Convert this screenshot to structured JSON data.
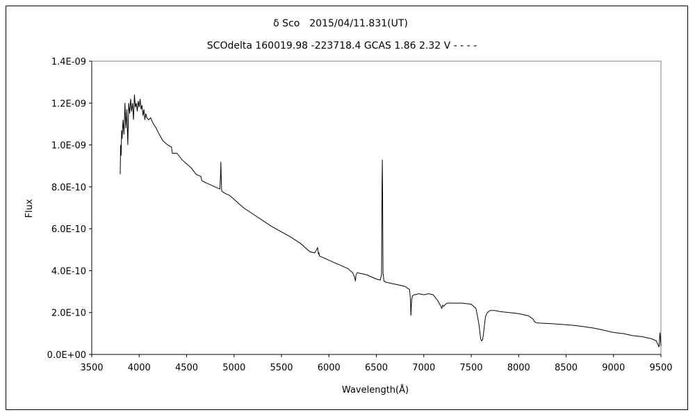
{
  "chart_data": {
    "type": "line",
    "title": "δ Sco　2015/04/11.831(UT)",
    "subtitle": "SCOdelta 160019.98 -223718.4 GCAS 1.86 2.32 V - - - -",
    "xlabel": "Wavelength(Å)",
    "ylabel": "Flux",
    "xlim": [
      3500,
      9500
    ],
    "ylim": [
      0,
      1.4e-09
    ],
    "x_ticks": [
      "3500",
      "4000",
      "4500",
      "5000",
      "5500",
      "6000",
      "6500",
      "7000",
      "7500",
      "8000",
      "8500",
      "9000",
      "9500"
    ],
    "y_ticks": [
      "0.0E+00",
      "2.0E-10",
      "4.0E-10",
      "6.0E-10",
      "8.0E-10",
      "1.0E-09",
      "1.2E-09",
      "1.4E-09"
    ],
    "grid": false,
    "series_color": "#000000",
    "series": [
      {
        "x": [
          3800,
          3805,
          3810,
          3815,
          3820,
          3830,
          3840,
          3850,
          3860,
          3870,
          3880,
          3890,
          3900,
          3910,
          3920,
          3930,
          3940,
          3950,
          3960,
          3970,
          3980,
          3990,
          4000,
          4010,
          4020,
          4030,
          4040,
          4050,
          4060,
          4070,
          4080,
          4100,
          4120,
          4150,
          4180,
          4200,
          4250,
          4300,
          4340,
          4350,
          4400,
          4450,
          4500,
          4550,
          4600,
          4650,
          4660,
          4700,
          4750,
          4800,
          4850,
          4858,
          4861,
          4864,
          4870,
          4900,
          4950,
          5000,
          5050,
          5100,
          5200,
          5300,
          5400,
          5500,
          5600,
          5700,
          5800,
          5850,
          5870,
          5880,
          5890,
          5895,
          5900,
          5950,
          6000,
          6050,
          6100,
          6150,
          6200,
          6250,
          6270,
          6280,
          6285,
          6300,
          6350,
          6400,
          6450,
          6500,
          6540,
          6555,
          6560,
          6563,
          6566,
          6570,
          6580,
          6600,
          6700,
          6800,
          6850,
          6860,
          6865,
          6868,
          6872,
          6880,
          6900,
          6950,
          7000,
          7050,
          7100,
          7150,
          7180,
          7190,
          7200,
          7210,
          7230,
          7250,
          7300,
          7400,
          7500,
          7550,
          7580,
          7600,
          7610,
          7620,
          7630,
          7640,
          7650,
          7670,
          7700,
          7750,
          7800,
          7900,
          8000,
          8100,
          8150,
          8170,
          8200,
          8300,
          8400,
          8500,
          8600,
          8700,
          8800,
          8900,
          9000,
          9100,
          9200,
          9300,
          9400,
          9450,
          9480,
          9490,
          9500
        ],
        "y": [
          8.6e-10,
          1e-09,
          9.5e-10,
          1.07e-09,
          1.03e-09,
          1.12e-09,
          1.05e-09,
          1.2e-09,
          1.08e-09,
          1.17e-09,
          1e-09,
          1.2e-09,
          1.15e-09,
          1.22e-09,
          1.16e-09,
          1.2e-09,
          1.12e-09,
          1.24e-09,
          1.18e-09,
          1.2e-09,
          1.16e-09,
          1.21e-09,
          1.18e-09,
          1.22e-09,
          1.17e-09,
          1.19e-09,
          1.14e-09,
          1.17e-09,
          1.12e-09,
          1.15e-09,
          1.13e-09,
          1.12e-09,
          1.13e-09,
          1.1e-09,
          1.08e-09,
          1.06e-09,
          1.02e-09,
          1e-09,
          9.9e-10,
          9.6e-10,
          9.6e-10,
          9.3e-10,
          9.1e-10,
          8.9e-10,
          8.6e-10,
          8.5e-10,
          8.3e-10,
          8.2e-10,
          8.1e-10,
          8e-10,
          7.9e-10,
          8.6e-10,
          9.2e-10,
          8.5e-10,
          7.8e-10,
          7.7e-10,
          7.6e-10,
          7.4e-10,
          7.2e-10,
          7e-10,
          6.7e-10,
          6.4e-10,
          6.1e-10,
          5.85e-10,
          5.6e-10,
          5.3e-10,
          4.9e-10,
          4.85e-10,
          5e-10,
          5.1e-10,
          4.8e-10,
          4.85e-10,
          4.7e-10,
          4.6e-10,
          4.5e-10,
          4.4e-10,
          4.3e-10,
          4.2e-10,
          4.1e-10,
          3.9e-10,
          3.7e-10,
          3.5e-10,
          3.8e-10,
          3.9e-10,
          3.85e-10,
          3.8e-10,
          3.7e-10,
          3.6e-10,
          3.55e-10,
          3.8e-10,
          8e-10,
          9.3e-10,
          7.8e-10,
          3.9e-10,
          3.5e-10,
          3.45e-10,
          3.35e-10,
          3.25e-10,
          3.1e-10,
          2.6e-10,
          1.85e-10,
          2.2e-10,
          2.6e-10,
          2.8e-10,
          2.85e-10,
          2.9e-10,
          2.85e-10,
          2.9e-10,
          2.85e-10,
          2.55e-10,
          2.3e-10,
          2.2e-10,
          2.35e-10,
          2.3e-10,
          2.4e-10,
          2.45e-10,
          2.45e-10,
          2.45e-10,
          2.4e-10,
          2.2e-10,
          1.5e-10,
          7.5e-11,
          6.5e-11,
          7e-11,
          1e-10,
          1.4e-10,
          1.8e-10,
          2e-10,
          2.1e-10,
          2.1e-10,
          2.05e-10,
          2e-10,
          1.95e-10,
          1.85e-10,
          1.7e-10,
          1.55e-10,
          1.5e-10,
          1.48e-10,
          1.45e-10,
          1.42e-10,
          1.38e-10,
          1.32e-10,
          1.25e-10,
          1.15e-10,
          1.05e-10,
          1e-10,
          9e-11,
          8.5e-11,
          7.5e-11,
          6.5e-11,
          3.5e-11,
          1.05e-10,
          4e-11
        ]
      }
    ]
  }
}
